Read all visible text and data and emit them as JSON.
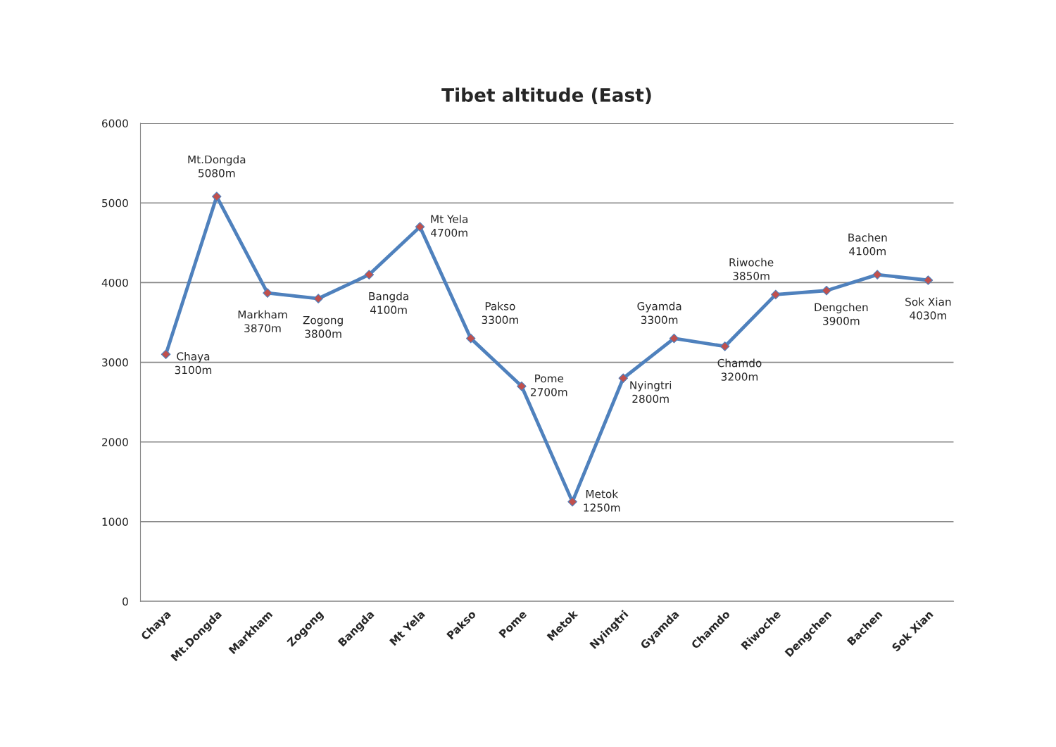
{
  "chart_data": {
    "type": "line",
    "title": "Tibet altitude (East)",
    "categories": [
      "Chaya",
      "Mt.Dongda",
      "Markham",
      "Zogong",
      "Bangda",
      "Mt Yela",
      "Pakso",
      "Pome",
      "Metok",
      "Nyingtri",
      "Gyamda",
      "Chamdo",
      "Riwoche",
      "Dengchen",
      "Bachen",
      "Sok Xian"
    ],
    "series": [
      {
        "color": "#4f81bd",
        "colors": [
          "#c0504d",
          "#c0504d",
          "#c0504d",
          "#c0504d",
          "#c0504d",
          "#c0504d",
          "#c0504d",
          "#c0504d",
          "#c0504d",
          "#c0504d",
          "#c0504d",
          "#c0504d",
          "#c0504d",
          "#c0504d",
          "#c0504d",
          "#c0504d"
        ],
        "values": [
          3100,
          5080,
          3870,
          3800,
          4100,
          4700,
          3300,
          2700,
          1250,
          2800,
          3300,
          3200,
          3850,
          3900,
          4100,
          4030
        ],
        "value_labels": [
          "Chaya\n3100m",
          "Mt.Dongda\n5080m",
          "Markham\n3870m",
          "Zogong\n3800m",
          "Bangda\n4100m",
          "Mt Yela\n4700m",
          "Pakso\n3300m",
          "Pome\n2700m",
          "Metok\n1250m",
          "Nyingtri\n2800m",
          "Gyamda\n3300m",
          "Chamdo\n3200m",
          "Riwoche\n3850m",
          "Dengchen\n3900m",
          "Bachen\n4100m",
          "Sok Xian\n4030m"
        ]
      }
    ],
    "ylim": [
      0,
      6000
    ],
    "yticks": [
      0,
      1000,
      2000,
      3000,
      4000,
      5000,
      6000
    ],
    "grid": "y",
    "legend": false,
    "marker": "diamond",
    "line_style": "solid"
  }
}
